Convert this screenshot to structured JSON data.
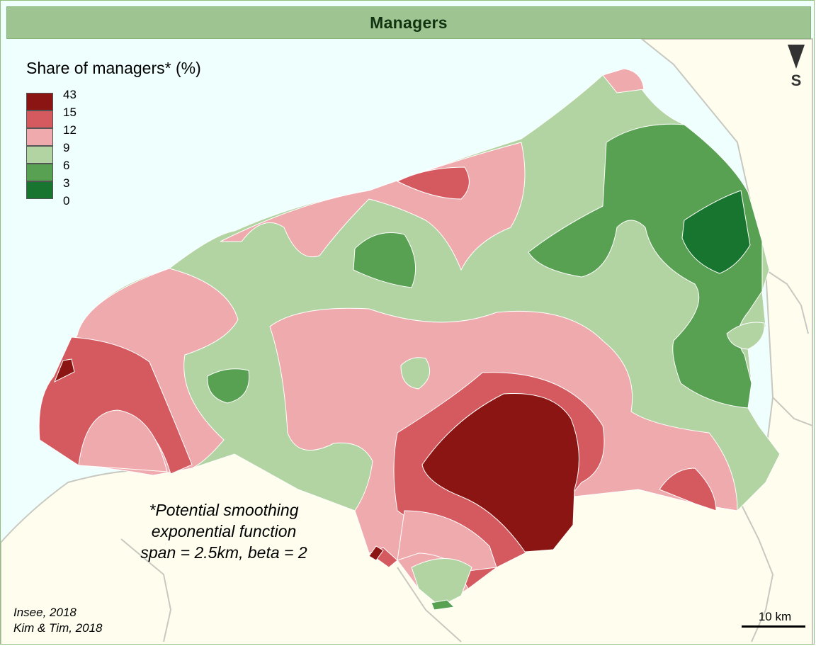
{
  "title": "Managers",
  "legend": {
    "title": "Share of managers* (%)",
    "breaks": [
      "43",
      "15",
      "12",
      "9",
      "6",
      "3",
      "0"
    ],
    "colors": [
      "#8b1512",
      "#d45a60",
      "#efaaad",
      "#b2d4a3",
      "#58a052",
      "#177530"
    ]
  },
  "north_label": "S",
  "note_lines": [
    "*Potential smoothing",
    "exponential function",
    "span = 2.5km, beta = 2"
  ],
  "sources": [
    "Insee, 2018",
    "Kim & Tim, 2018"
  ],
  "scale_label": "10 km",
  "colors": {
    "sea": "#eefffe",
    "land": "#fffeee",
    "title_bar": "#9ec591"
  }
}
